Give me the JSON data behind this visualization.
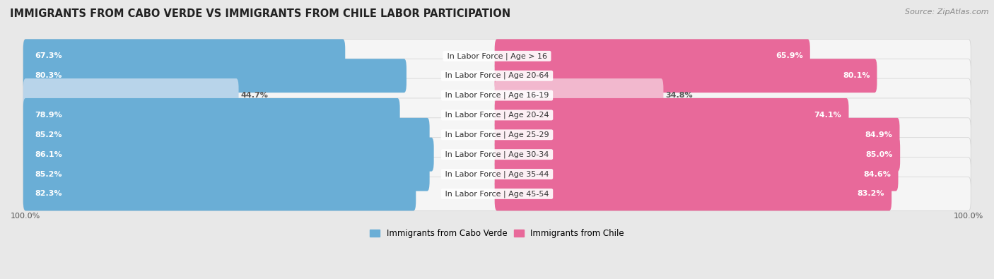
{
  "title": "IMMIGRANTS FROM CABO VERDE VS IMMIGRANTS FROM CHILE LABOR PARTICIPATION",
  "source": "Source: ZipAtlas.com",
  "categories": [
    "In Labor Force | Age > 16",
    "In Labor Force | Age 20-64",
    "In Labor Force | Age 16-19",
    "In Labor Force | Age 20-24",
    "In Labor Force | Age 25-29",
    "In Labor Force | Age 30-34",
    "In Labor Force | Age 35-44",
    "In Labor Force | Age 45-54"
  ],
  "cabo_verde_values": [
    67.3,
    80.3,
    44.7,
    78.9,
    85.2,
    86.1,
    85.2,
    82.3
  ],
  "chile_values": [
    65.9,
    80.1,
    34.8,
    74.1,
    84.9,
    85.0,
    84.6,
    83.2
  ],
  "cabo_verde_color": "#6aaed6",
  "cabo_verde_light_color": "#b8d4ea",
  "chile_color": "#e8699a",
  "chile_light_color": "#f2b8ce",
  "bg_color": "#e8e8e8",
  "row_bg_color": "#f5f5f5",
  "row_border_color": "#d0d0d0",
  "label_white": "#ffffff",
  "label_dark": "#555555",
  "max_value": 100.0,
  "legend_cabo_verde": "Immigrants from Cabo Verde",
  "legend_chile": "Immigrants from Chile",
  "title_fontsize": 10.5,
  "source_fontsize": 8,
  "value_fontsize": 8,
  "category_fontsize": 8,
  "axis_fontsize": 8
}
